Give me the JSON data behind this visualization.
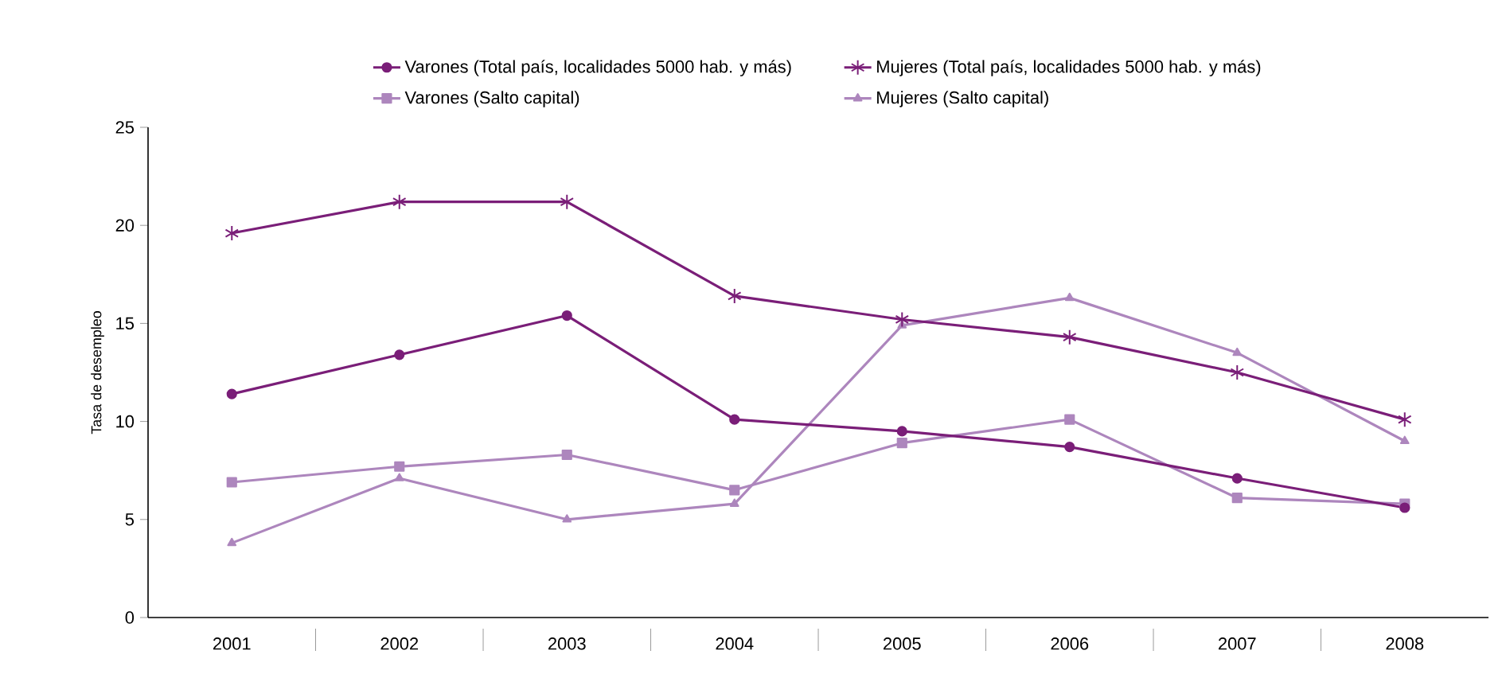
{
  "chart_data": {
    "type": "line",
    "ylabel": "Tasa de desempleo",
    "categories": [
      "2001",
      "2002",
      "2003",
      "2004",
      "2005",
      "2006",
      "2007",
      "2008"
    ],
    "ylim": [
      0,
      25
    ],
    "yticks": [
      0,
      5,
      10,
      15,
      20,
      25
    ],
    "grid": false,
    "legend": "top",
    "series": [
      {
        "name": "Varones (Total país, localidades 5000 hab. y más)",
        "color": "#7a1e78",
        "marker": "circle",
        "values": [
          11.4,
          13.4,
          15.4,
          10.1,
          9.5,
          8.7,
          7.1,
          5.6
        ]
      },
      {
        "name": "Mujeres (Total país, localidades 5000 hab. y más)",
        "color": "#7a1e78",
        "marker": "cross",
        "values": [
          19.6,
          21.2,
          21.2,
          16.4,
          15.2,
          14.3,
          12.5,
          10.1
        ]
      },
      {
        "name": "Varones (Salto capital)",
        "color": "#ad86bd",
        "marker": "square",
        "values": [
          6.9,
          7.7,
          8.3,
          6.5,
          8.9,
          10.1,
          6.1,
          5.8
        ]
      },
      {
        "name": "Mujeres (Salto capital)",
        "color": "#ad86bd",
        "marker": "triangle",
        "values": [
          3.8,
          7.1,
          5.0,
          5.8,
          14.9,
          16.3,
          13.5,
          9.0
        ]
      }
    ]
  }
}
